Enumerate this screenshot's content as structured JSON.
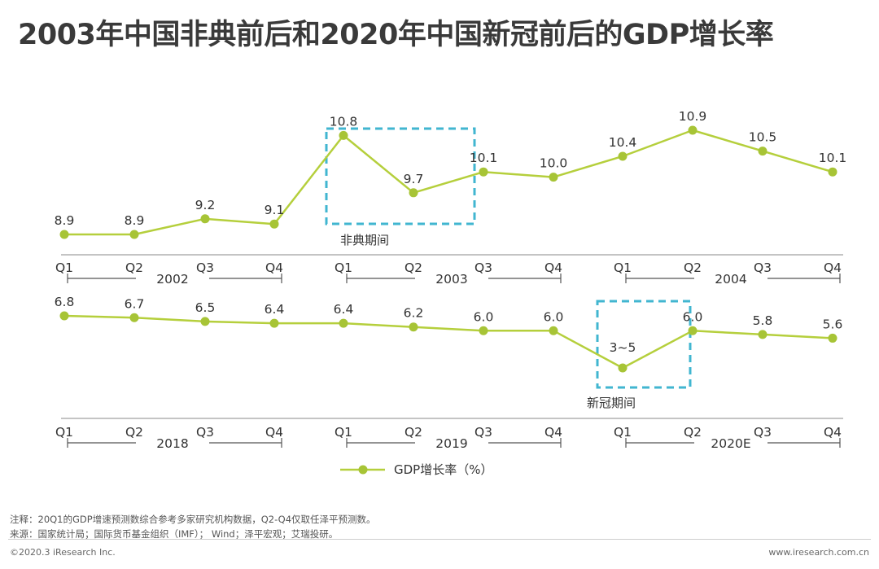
{
  "title": "2003年中国非典前后和2020年中国新冠前后的GDP增长率",
  "chart_data": [
    {
      "type": "line",
      "name": "sars-period",
      "categories": [
        "Q1",
        "Q2",
        "Q3",
        "Q4",
        "Q1",
        "Q2",
        "Q3",
        "Q4",
        "Q1",
        "Q2",
        "Q3",
        "Q4"
      ],
      "years": [
        "2002",
        "2003",
        "2004"
      ],
      "values": [
        8.9,
        8.9,
        9.2,
        9.1,
        10.8,
        9.7,
        10.1,
        10.0,
        10.4,
        10.9,
        10.5,
        10.1
      ],
      "labels": [
        "8.9",
        "8.9",
        "9.2",
        "9.1",
        "10.8",
        "9.7",
        "10.1",
        "10.0",
        "10.4",
        "10.9",
        "10.5",
        "10.1"
      ],
      "ylim": [
        8.0,
        11.6
      ],
      "highlight": {
        "label": "非典期间",
        "from_index": 4,
        "to_index": 6
      }
    },
    {
      "type": "line",
      "name": "covid-period",
      "categories": [
        "Q1",
        "Q2",
        "Q3",
        "Q4",
        "Q1",
        "Q2",
        "Q3",
        "Q4",
        "Q1",
        "Q2",
        "Q3",
        "Q4"
      ],
      "years": [
        "2018",
        "2019",
        "2020E"
      ],
      "values": [
        6.8,
        6.7,
        6.5,
        6.4,
        6.4,
        6.2,
        6.0,
        6.0,
        4.0,
        6.0,
        5.8,
        5.6
      ],
      "labels": [
        "6.8",
        "6.7",
        "6.5",
        "6.4",
        "6.4",
        "6.2",
        "6.0",
        "6.0",
        "3~5",
        "6.0",
        "5.8",
        "5.6"
      ],
      "ylim": [
        3.0,
        7.4
      ],
      "highlight": {
        "label": "新冠期间",
        "from_index": 8,
        "to_index": 9
      }
    }
  ],
  "legend": {
    "label": "GDP增长率（%）"
  },
  "colors": {
    "line": "#b5cf3c",
    "marker": "#a7c436",
    "highlight": "#41b6d0",
    "axis": "#555555",
    "text": "#333333"
  },
  "notes": {
    "note1": "注释：20Q1的GDP增速预测数综合参考多家研究机构数据，Q2-Q4仅取任泽平预测数。",
    "note2": "来源：国家统计局；国际货币基金组织（IMF）； Wind；泽平宏观；艾瑞投研。"
  },
  "footer": {
    "left": "©2020.3 iResearch Inc.",
    "right": "www.iresearch.com.cn"
  }
}
